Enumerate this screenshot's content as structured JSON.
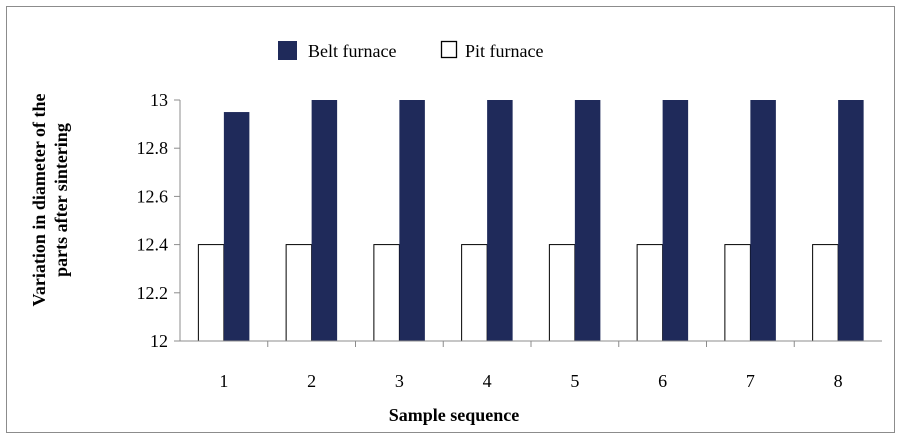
{
  "chart_data": {
    "type": "bar",
    "categories": [
      "1",
      "2",
      "3",
      "4",
      "5",
      "6",
      "7",
      "8"
    ],
    "series": [
      {
        "name": "Pit furnace",
        "values": [
          12.4,
          12.4,
          12.4,
          12.4,
          12.4,
          12.4,
          12.4,
          12.4
        ],
        "color": "#ffffff",
        "stroke": "#000000"
      },
      {
        "name": "Belt furnace",
        "values": [
          12.95,
          13,
          13,
          13,
          13,
          13,
          13,
          13
        ],
        "color": "#1f2a5a"
      }
    ],
    "legend_order": [
      "Belt furnace",
      "Pit furnace"
    ],
    "legend_position": "top-center",
    "xlabel": "Sample sequence",
    "ylabel": "Variation in diameter of the parts after sintering",
    "ylim": [
      12,
      13
    ],
    "yticks": [
      12,
      12.2,
      12.4,
      12.6,
      12.8,
      13
    ],
    "grid": false
  }
}
